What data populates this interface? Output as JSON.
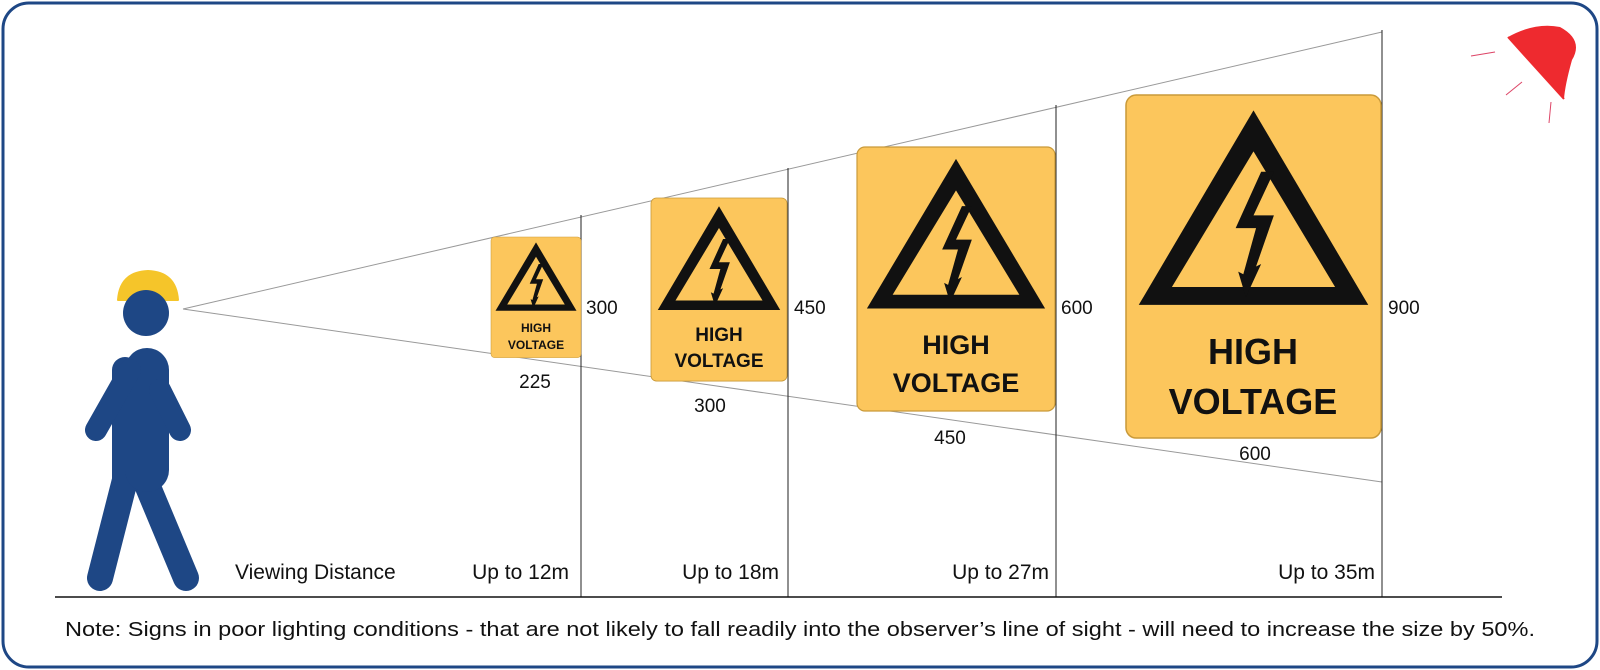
{
  "colors": {
    "border": "#1e4785",
    "person": "#1e4785",
    "helmet": "#f5c52a",
    "sign": "#fcc65c",
    "alert": "#ee2a2f"
  },
  "icons": {
    "person": "walking-worker-icon",
    "alert": "red-light-icon"
  },
  "viewing_label": "Viewing Distance",
  "signs": [
    {
      "line1": "HIGH",
      "line2": "VOLTAGE",
      "height": "300",
      "width": "225",
      "distance": "Up to 12m"
    },
    {
      "line1": "HIGH",
      "line2": "VOLTAGE",
      "height": "450",
      "width": "300",
      "distance": "Up to 18m"
    },
    {
      "line1": "HIGH",
      "line2": "VOLTAGE",
      "height": "600",
      "width": "450",
      "distance": "Up to 27m"
    },
    {
      "line1": "HIGH",
      "line2": "VOLTAGE",
      "height": "900",
      "width": "600",
      "distance": "Up to 35m"
    }
  ],
  "note": "Note: Signs in poor lighting conditions - that are not likely to fall readily into the observer’s line of sight - will need to increase the size by 50%."
}
